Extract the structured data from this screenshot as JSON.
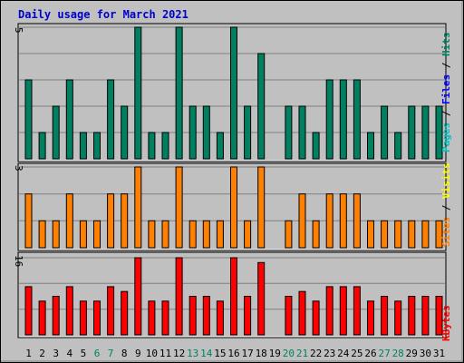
{
  "title": "Daily usage for March 2021",
  "colors": {
    "background": "#c0c0c0",
    "panel": "#c0c0c0",
    "grid": "#808080",
    "title": "#0000cc",
    "pages": "#00c0c0",
    "files": "#0000ff",
    "hits": "#008060",
    "sites": "#ff8000",
    "visits": "#ffff00",
    "kbytes": "#ff0000",
    "weekend_label": "#008060",
    "weekday_label": "#000000",
    "separator": "#000000"
  },
  "chart_data": [
    {
      "type": "bar",
      "panel": "top",
      "y_max_label": "5",
      "ylim": [
        0,
        5
      ],
      "legend": [
        "Pages",
        "Files",
        "Hits"
      ],
      "series": [
        {
          "name": "Hits",
          "color_key": "hits",
          "values": [
            3,
            1,
            2,
            3,
            1,
            1,
            3,
            2,
            5,
            1,
            1,
            5,
            2,
            2,
            1,
            5,
            2,
            4,
            0,
            2,
            2,
            1,
            3,
            3,
            3,
            1,
            2,
            1,
            2,
            2,
            2
          ]
        }
      ]
    },
    {
      "type": "bar",
      "panel": "middle",
      "y_max_label": "3",
      "ylim": [
        0,
        3
      ],
      "legend": [
        "Sites",
        "Visits"
      ],
      "series": [
        {
          "name": "Sites",
          "color_key": "sites",
          "values": [
            2,
            1,
            1,
            2,
            1,
            1,
            2,
            2,
            3,
            1,
            1,
            3,
            1,
            1,
            1,
            3,
            1,
            3,
            0,
            1,
            2,
            1,
            2,
            2,
            2,
            1,
            1,
            1,
            1,
            1,
            1
          ]
        }
      ]
    },
    {
      "type": "bar",
      "panel": "bottom",
      "y_max_label": "16",
      "ylim": [
        0,
        16
      ],
      "legend": [
        "KBytes"
      ],
      "series": [
        {
          "name": "KBytes",
          "color_key": "kbytes",
          "values": [
            10,
            7,
            8,
            10,
            7,
            7,
            10,
            9,
            16,
            7,
            7,
            16,
            8,
            8,
            7,
            16,
            8,
            15,
            0,
            8,
            9,
            7,
            10,
            10,
            10,
            7,
            8,
            7,
            8,
            8,
            8
          ]
        }
      ]
    }
  ],
  "x_categories": [
    "1",
    "2",
    "3",
    "4",
    "5",
    "6",
    "7",
    "8",
    "9",
    "10",
    "11",
    "12",
    "13",
    "14",
    "15",
    "16",
    "17",
    "18",
    "19",
    "20",
    "21",
    "22",
    "23",
    "24",
    "25",
    "26",
    "27",
    "28",
    "29",
    "30",
    "31"
  ],
  "weekend_days": [
    "6",
    "7",
    "13",
    "14",
    "20",
    "21",
    "27",
    "28"
  ]
}
